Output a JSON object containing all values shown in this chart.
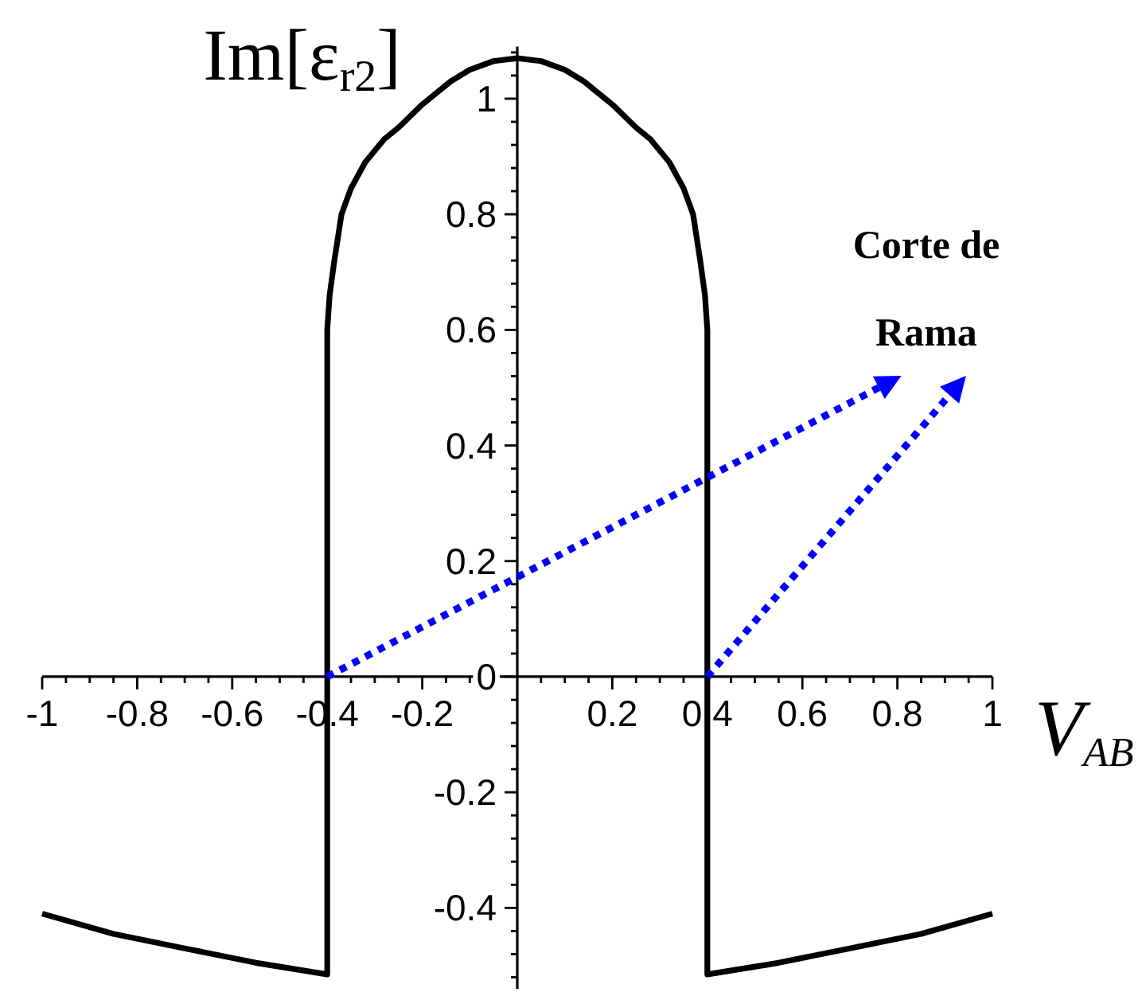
{
  "chart_data": {
    "type": "line",
    "xlabel": "V$_{AB}$",
    "ylabel": "Im[ε$_{r2}$]",
    "annotations": [
      {
        "text": "Corte de Rama",
        "x": 0.4,
        "y": 0
      }
    ],
    "xlim": [
      -1,
      1
    ],
    "ylim": [
      -0.54,
      1.09
    ],
    "xticks": [
      -1,
      {
        "value": -0.95,
        "label": null
      },
      {
        "value": -0.9,
        "label": null
      },
      {
        "value": -0.85,
        "label": null
      },
      -0.8,
      {
        "value": -0.75,
        "label": null
      },
      {
        "value": -0.7,
        "label": null
      },
      {
        "value": -0.65,
        "label": null
      },
      -0.6,
      {
        "value": -0.55,
        "label": null
      },
      {
        "value": -0.5,
        "label": null
      },
      {
        "value": -0.45,
        "label": null
      },
      -0.4,
      {
        "value": -0.35,
        "label": null
      },
      {
        "value": -0.3,
        "label": null
      },
      {
        "value": -0.25,
        "label": null
      },
      -0.2,
      {
        "value": -0.15,
        "label": null
      },
      {
        "value": -0.1,
        "label": null
      },
      {
        "value": -0.05,
        "label": null
      },
      {
        "value": 0.05,
        "label": null
      },
      {
        "value": 0.1,
        "label": null
      },
      {
        "value": 0.15,
        "label": null
      },
      0.2,
      {
        "value": 0.25,
        "label": null
      },
      {
        "value": 0.3,
        "label": null
      },
      {
        "value": 0.35,
        "label": null
      },
      0.4,
      {
        "value": 0.45,
        "label": null
      },
      {
        "value": 0.5,
        "label": null
      },
      {
        "value": 0.55,
        "label": null
      },
      0.6,
      {
        "value": 0.65,
        "label": null
      },
      {
        "value": 0.7,
        "label": null
      },
      {
        "value": 0.75,
        "label": null
      },
      0.8,
      {
        "value": 0.85,
        "label": null
      },
      {
        "value": 0.9,
        "label": null
      },
      {
        "value": 0.95,
        "label": null
      },
      1
    ],
    "yticks": [
      {
        "value": -0.52,
        "label": null
      },
      {
        "value": -0.48,
        "label": null
      },
      {
        "value": -0.44,
        "label": null
      },
      -0.4,
      {
        "value": -0.36,
        "label": null
      },
      {
        "value": -0.32,
        "label": null
      },
      {
        "value": -0.28,
        "label": null
      },
      {
        "value": -0.24,
        "label": null
      },
      -0.2,
      {
        "value": -0.16,
        "label": null
      },
      {
        "value": -0.12,
        "label": null
      },
      {
        "value": -0.08,
        "label": null
      },
      {
        "value": -0.04,
        "label": null
      },
      {
        "value": 0,
        "label": "0"
      },
      {
        "value": 0.04,
        "label": null
      },
      {
        "value": 0.08,
        "label": null
      },
      {
        "value": 0.12,
        "label": null
      },
      {
        "value": 0.16,
        "label": null
      },
      0.2,
      {
        "value": 0.24,
        "label": null
      },
      {
        "value": 0.28,
        "label": null
      },
      {
        "value": 0.32,
        "label": null
      },
      {
        "value": 0.36,
        "label": null
      },
      0.4,
      {
        "value": 0.44,
        "label": null
      },
      {
        "value": 0.48,
        "label": null
      },
      {
        "value": 0.52,
        "label": null
      },
      {
        "value": 0.56,
        "label": null
      },
      0.6,
      {
        "value": 0.64,
        "label": null
      },
      {
        "value": 0.68,
        "label": null
      },
      {
        "value": 0.72,
        "label": null
      },
      {
        "value": 0.76,
        "label": null
      },
      0.8,
      {
        "value": 0.84,
        "label": null
      },
      {
        "value": 0.88,
        "label": null
      },
      {
        "value": 0.92,
        "label": null
      },
      {
        "value": 0.96,
        "label": null
      },
      1,
      {
        "value": 1.04,
        "label": null
      },
      {
        "value": 1.08,
        "label": null
      }
    ],
    "line_style": "solid",
    "series": [
      {
        "color": "#000000",
        "x": [
          -1,
          -0.85,
          -0.7,
          -0.55,
          -0.4,
          -0.4,
          -0.395,
          -0.385,
          -0.37,
          -0.35,
          -0.32,
          -0.28,
          -0.25,
          -0.2,
          -0.14,
          -0.1,
          -0.05,
          0,
          0.05,
          0.1,
          0.14,
          0.2,
          0.25,
          0.28,
          0.32,
          0.35,
          0.37,
          0.385,
          0.395,
          0.4,
          0.4,
          0.55,
          0.7,
          0.85,
          1
        ],
        "values": [
          -0.41,
          -0.445,
          -0.47,
          -0.495,
          -0.515,
          0.6,
          0.66,
          0.72,
          0.8,
          0.845,
          0.89,
          0.93,
          0.95,
          0.99,
          1.03,
          1.05,
          1.065,
          1.07,
          1.065,
          1.05,
          1.03,
          0.99,
          0.95,
          0.93,
          0.89,
          0.845,
          0.8,
          0.72,
          0.66,
          0.6,
          -0.515,
          -0.495,
          -0.47,
          -0.445,
          -0.41
        ]
      }
    ]
  }
}
